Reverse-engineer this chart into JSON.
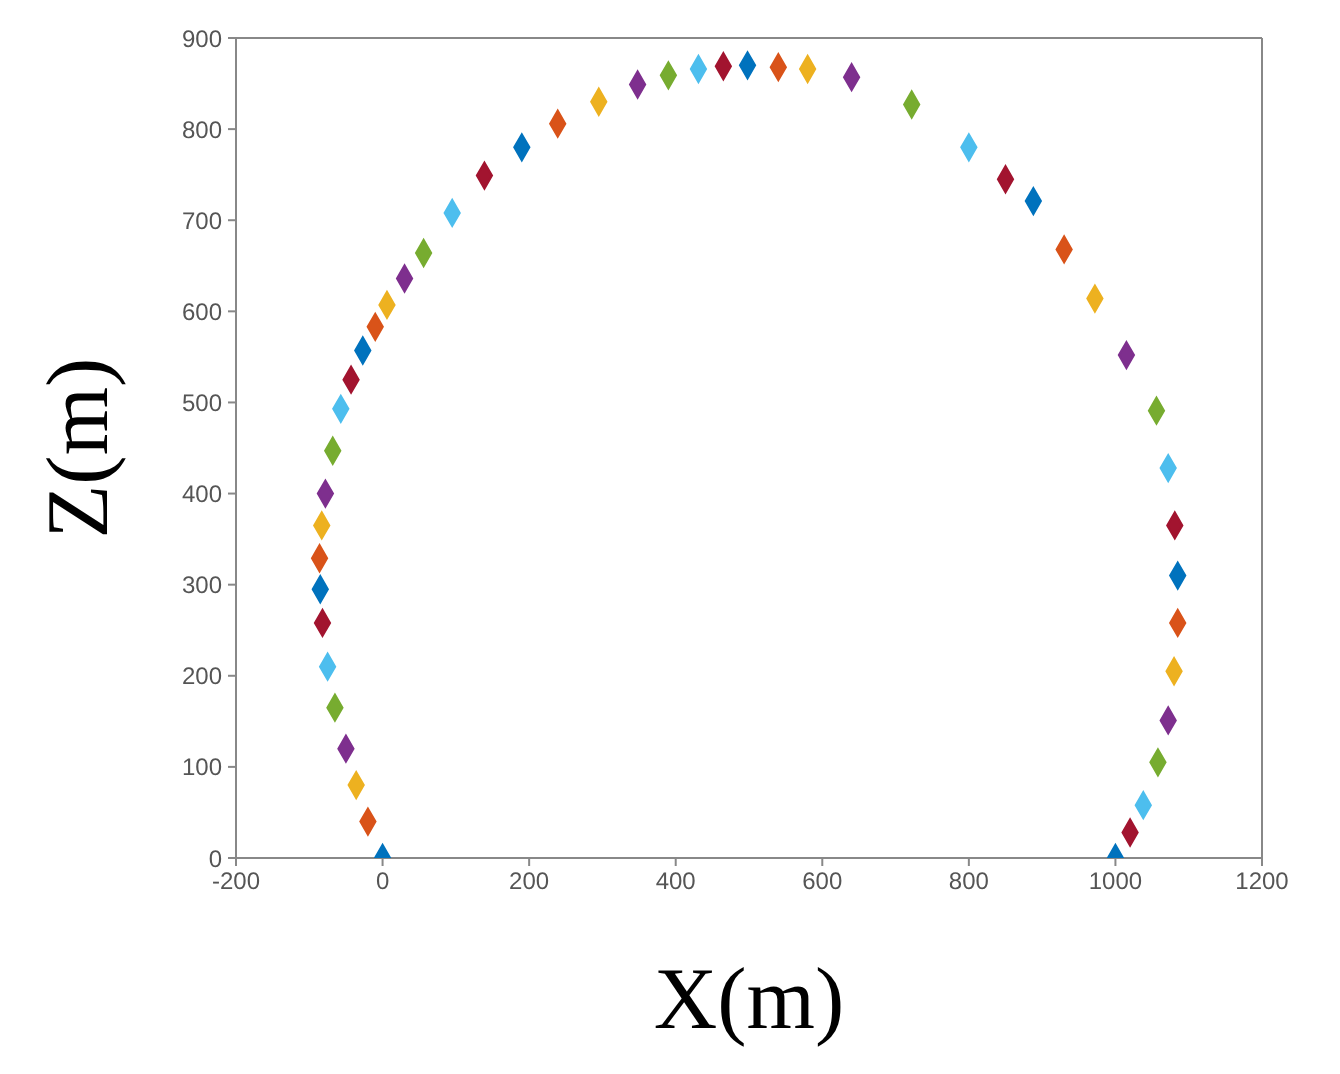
{
  "chart_data": {
    "type": "scatter",
    "xlabel": "X(m)",
    "ylabel": "Z(m)",
    "x": [
      0,
      -20,
      -36,
      -50,
      -65,
      -75,
      -82,
      -85,
      -86,
      -83,
      -78,
      -68,
      -57,
      -43,
      -27,
      -10,
      6,
      30,
      56,
      95,
      139,
      190,
      239,
      295,
      348,
      390,
      431,
      465,
      498,
      540,
      580,
      640,
      722,
      800,
      850,
      888,
      930,
      972,
      1015,
      1056,
      1072,
      1081,
      1085,
      1085,
      1080,
      1072,
      1058,
      1038,
      1020,
      1000
    ],
    "values": [
      0,
      40,
      80,
      120,
      165,
      210,
      258,
      295,
      329,
      365,
      400,
      447,
      493,
      525,
      557,
      583,
      607,
      636,
      664,
      708,
      749,
      780,
      806,
      830,
      849,
      859,
      866,
      869,
      870,
      868,
      866,
      857,
      827,
      780,
      745,
      721,
      668,
      614,
      552,
      491,
      428,
      365,
      310,
      258,
      205,
      151,
      105,
      58,
      28,
      0
    ],
    "colors": [
      "#0072bd",
      "#d95319",
      "#edb120",
      "#7e2f8e",
      "#77ac30",
      "#4dbeee",
      "#a2142f",
      "#0072bd",
      "#d95319",
      "#edb120",
      "#7e2f8e",
      "#77ac30",
      "#4dbeee",
      "#a2142f",
      "#0072bd",
      "#d95319",
      "#edb120",
      "#7e2f8e",
      "#77ac30",
      "#4dbeee",
      "#a2142f",
      "#0072bd",
      "#d95319",
      "#edb120",
      "#7e2f8e",
      "#77ac30",
      "#4dbeee",
      "#a2142f",
      "#0072bd",
      "#d95319",
      "#edb120",
      "#7e2f8e",
      "#77ac30",
      "#4dbeee",
      "#a2142f",
      "#0072bd",
      "#d95319",
      "#edb120",
      "#7e2f8e",
      "#77ac30",
      "#4dbeee",
      "#a2142f",
      "#0072bd",
      "#d95319",
      "#edb120",
      "#7e2f8e",
      "#77ac30",
      "#4dbeee",
      "#a2142f",
      "#0072bd"
    ],
    "marker": "diamond",
    "xlim": [
      -200,
      1200
    ],
    "xticks": [
      -200,
      0,
      200,
      400,
      600,
      800,
      1000,
      1200
    ],
    "ylim": [
      0,
      900
    ],
    "yticks": [
      0,
      100,
      200,
      300,
      400,
      500,
      600,
      700,
      800,
      900
    ],
    "grid": false
  }
}
